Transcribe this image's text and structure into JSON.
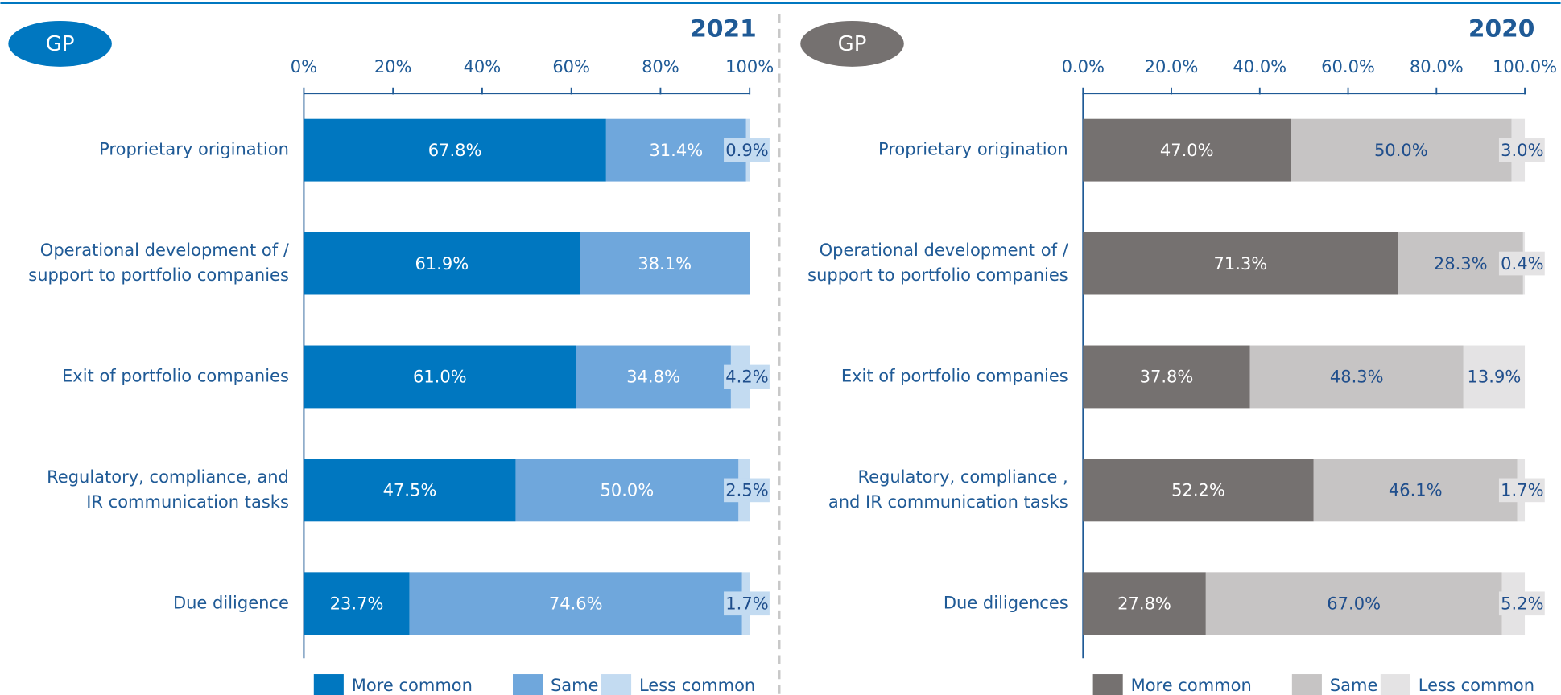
{
  "chart_data": [
    {
      "type": "stacked_barh",
      "badge": "GP",
      "badge_color": "#0077c0",
      "title": "2021",
      "categories": [
        "Proprietary origination",
        "Operational development of /\nsupport to portfolio companies",
        "Exit of portfolio companies",
        "Regulatory, compliance, and\nIR communication tasks",
        "Due diligence"
      ],
      "series": [
        {
          "name": "More common",
          "color": "#0077c0",
          "label_color": "#ffffff",
          "values": [
            67.8,
            61.9,
            61.0,
            47.5,
            23.7
          ],
          "value_labels": [
            "67.8%",
            "61.9%",
            "61.0%",
            "47.5%",
            "23.7%"
          ]
        },
        {
          "name": "Same",
          "color": "#6fa7dc",
          "label_color": "#ffffff",
          "values": [
            31.4,
            38.1,
            34.8,
            50.0,
            74.6
          ],
          "value_labels": [
            "31.4%",
            "38.1%",
            "34.8%",
            "50.0%",
            "74.6%"
          ]
        },
        {
          "name": "Less common",
          "color": "#c3dbf1",
          "label_color": "#1f4e8c",
          "values": [
            0.9,
            0,
            4.2,
            2.5,
            1.7
          ],
          "value_labels": [
            "0.9%",
            null,
            "4.2%",
            "2.5%",
            "1.7%"
          ]
        }
      ],
      "xlim": [
        0,
        100
      ],
      "xticks": [
        {
          "value": 0,
          "label": "0%"
        },
        {
          "value": 20,
          "label": "20%"
        },
        {
          "value": 40,
          "label": "40%"
        },
        {
          "value": 60,
          "label": "60%"
        },
        {
          "value": 80,
          "label": "80%"
        },
        {
          "value": 100,
          "label": "100%"
        }
      ]
    },
    {
      "type": "stacked_barh",
      "badge": "GP",
      "badge_color": "#757170",
      "title": "2020",
      "categories": [
        "Proprietary origination",
        "Operational development of /\nsupport to portfolio companies",
        "Exit of portfolio companies",
        "Regulatory, compliance ,\nand IR communication tasks",
        "Due diligences"
      ],
      "series": [
        {
          "name": "More common",
          "color": "#757170",
          "label_color": "#ffffff",
          "values": [
            47.0,
            71.3,
            37.8,
            52.2,
            27.8
          ],
          "value_labels": [
            "47.0%",
            "71.3%",
            "37.8%",
            "52.2%",
            "27.8%"
          ]
        },
        {
          "name": "Same",
          "color": "#c6c4c4",
          "label_color": "#1f4e8c",
          "values": [
            50.0,
            28.3,
            48.3,
            46.1,
            67.0
          ],
          "value_labels": [
            "50.0%",
            "28.3%",
            "48.3%",
            "46.1%",
            "67.0%"
          ]
        },
        {
          "name": "Less common",
          "color": "#e4e3e4",
          "label_color": "#1f4e8c",
          "values": [
            3.0,
            0.4,
            13.9,
            1.7,
            5.2
          ],
          "value_labels": [
            "3.0%",
            "0.4%",
            "13.9%",
            "1.7%",
            "5.2%"
          ]
        }
      ],
      "xlim": [
        0,
        100
      ],
      "xticks": [
        {
          "value": 0,
          "label": "0.0%"
        },
        {
          "value": 20,
          "label": "20.0%"
        },
        {
          "value": 40,
          "label": "40.0%"
        },
        {
          "value": 60,
          "label": "60.0%"
        },
        {
          "value": 80,
          "label": "80.0%"
        },
        {
          "value": 100,
          "label": "100.0%"
        }
      ]
    }
  ]
}
